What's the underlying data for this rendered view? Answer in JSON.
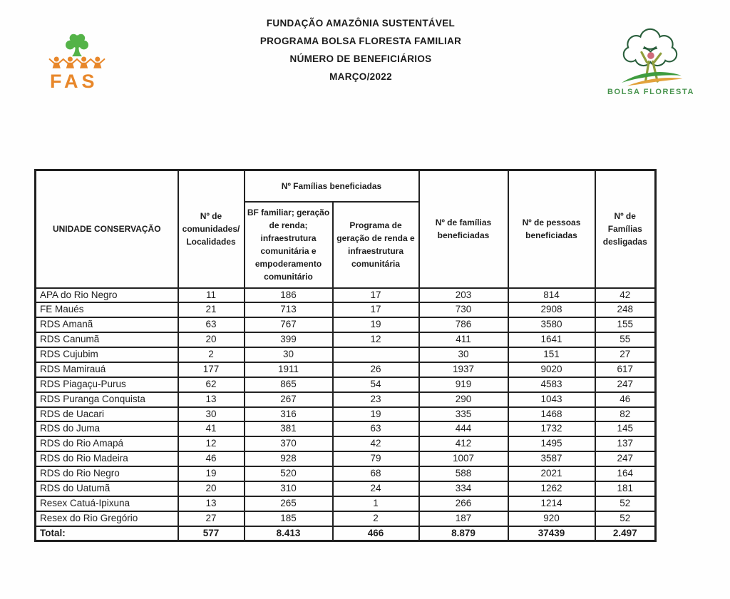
{
  "header": {
    "lines": [
      "FUNDAÇÃO AMAZÔNIA SUSTENTÁVEL",
      "PROGRAMA BOLSA FLORESTA FAMILIAR",
      "NÚMERO DE BENEFICIÁRIOS",
      "MARÇO/2022"
    ]
  },
  "logos": {
    "fas": {
      "text": "FAS",
      "tree_color": "#54b348",
      "people_color": "#e8872a",
      "text_color": "#e8872a"
    },
    "bolsa_floresta": {
      "label": "BOLSA FLORESTA",
      "outline_color": "#2a5f3c",
      "person_head_color": "#cf6a7a",
      "person_body_color": "#8f9e3c",
      "swoosh_green": "#3f9c3f",
      "swoosh_orange": "#e2a23b",
      "text_color": "#47934d"
    }
  },
  "table": {
    "group_header": "Nº Famílias beneficiadas",
    "columns": {
      "unit": "UNIDADE CONSERVAÇÃO",
      "communities": "Nº de comunidades/ Localidades",
      "bf_familiar": "BF familiar; geração de renda; infraestrutura comunitária e empoderamento comunitário",
      "programa": "Programa de geração de renda e infraestrutura comunitária",
      "familias_beneficiadas": "Nº de famílias beneficiadas",
      "pessoas_beneficiadas": "Nº de pessoas beneficiadas",
      "familias_desligadas": "Nº de Famílias desligadas"
    },
    "rows": [
      {
        "name": "APA do Rio Negro",
        "values": [
          "11",
          "186",
          "17",
          "203",
          "814",
          "42"
        ]
      },
      {
        "name": "FE Maués",
        "values": [
          "21",
          "713",
          "17",
          "730",
          "2908",
          "248"
        ]
      },
      {
        "name": "RDS Amanã",
        "values": [
          "63",
          "767",
          "19",
          "786",
          "3580",
          "155"
        ]
      },
      {
        "name": "RDS Canumã",
        "values": [
          "20",
          "399",
          "12",
          "411",
          "1641",
          "55"
        ]
      },
      {
        "name": "RDS Cujubim",
        "values": [
          "2",
          "30",
          "",
          "30",
          "151",
          "27"
        ]
      },
      {
        "name": "RDS Mamirauá",
        "values": [
          "177",
          "1911",
          "26",
          "1937",
          "9020",
          "617"
        ]
      },
      {
        "name": "RDS Piagaçu-Purus",
        "values": [
          "62",
          "865",
          "54",
          "919",
          "4583",
          "247"
        ]
      },
      {
        "name": "RDS Puranga Conquista",
        "values": [
          "13",
          "267",
          "23",
          "290",
          "1043",
          "46"
        ]
      },
      {
        "name": "RDS de Uacari",
        "values": [
          "30",
          "316",
          "19",
          "335",
          "1468",
          "82"
        ]
      },
      {
        "name": "RDS do Juma",
        "values": [
          "41",
          "381",
          "63",
          "444",
          "1732",
          "145"
        ]
      },
      {
        "name": "RDS do Rio Amapá",
        "values": [
          "12",
          "370",
          "42",
          "412",
          "1495",
          "137"
        ]
      },
      {
        "name": "RDS do Rio Madeira",
        "values": [
          "46",
          "928",
          "79",
          "1007",
          "3587",
          "247"
        ]
      },
      {
        "name": "RDS do Rio Negro",
        "values": [
          "19",
          "520",
          "68",
          "588",
          "2021",
          "164"
        ]
      },
      {
        "name": "RDS do Uatumã",
        "values": [
          "20",
          "310",
          "24",
          "334",
          "1262",
          "181"
        ]
      },
      {
        "name": "Resex Catuá-Ipixuna",
        "values": [
          "13",
          "265",
          "1",
          "266",
          "1214",
          "52"
        ]
      },
      {
        "name": "Resex do Rio Gregório",
        "values": [
          "27",
          "185",
          "2",
          "187",
          "920",
          "52"
        ]
      }
    ],
    "total": {
      "label": "Total:",
      "values": [
        "577",
        "8.413",
        "466",
        "8.879",
        "37439",
        "2.497"
      ]
    }
  }
}
